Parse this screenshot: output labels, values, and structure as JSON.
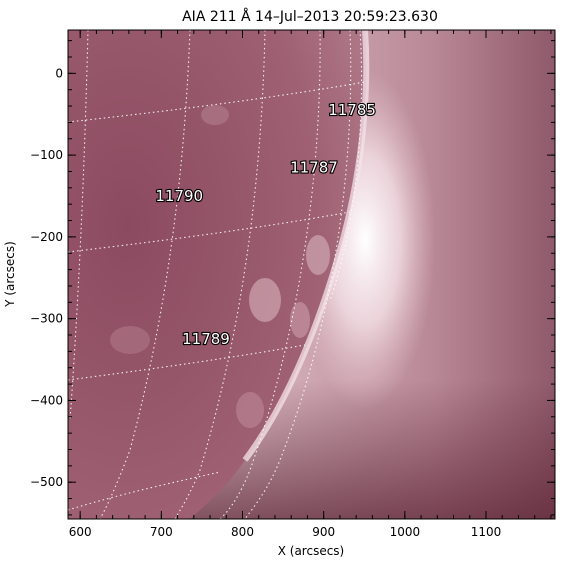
{
  "title": "AIA 211 Å 14–Jul–2013 20:59:23.630",
  "xlabel": "X (arcsecs)",
  "ylabel": "Y (arcsecs)",
  "x_range": [
    585,
    1185
  ],
  "y_range": [
    -545,
    53
  ],
  "x_ticks": [
    {
      "value": 600,
      "label": "600"
    },
    {
      "value": 700,
      "label": "700"
    },
    {
      "value": 800,
      "label": "800"
    },
    {
      "value": 900,
      "label": "900"
    },
    {
      "value": 1000,
      "label": "1000"
    },
    {
      "value": 1100,
      "label": "1100"
    }
  ],
  "y_ticks": [
    {
      "value": 0,
      "label": "0"
    },
    {
      "value": -100,
      "label": "−100"
    },
    {
      "value": -200,
      "label": "−200"
    },
    {
      "value": -300,
      "label": "−300"
    },
    {
      "value": -400,
      "label": "−400"
    },
    {
      "value": -500,
      "label": "−500"
    }
  ],
  "regions": [
    {
      "label": "11785",
      "x": 935,
      "y": -45
    },
    {
      "label": "11787",
      "x": 888,
      "y": -115
    },
    {
      "label": "11790",
      "x": 722,
      "y": -150
    },
    {
      "label": "11789",
      "x": 755,
      "y": -325
    }
  ],
  "colors": {
    "disk": "#9a5a6e",
    "limb": "#fbeff2",
    "corona": "#c9a2ae",
    "dark": "#5a2334",
    "grid": "#ffffff"
  }
}
